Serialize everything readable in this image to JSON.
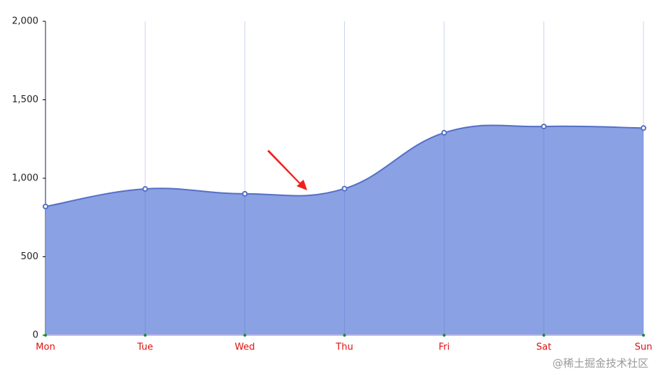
{
  "chart_data": {
    "type": "area",
    "categories": [
      "Mon",
      "Tue",
      "Wed",
      "Thu",
      "Fri",
      "Sat",
      "Sun"
    ],
    "values": [
      820,
      932,
      901,
      934,
      1290,
      1330,
      1320
    ],
    "color": "#5470c6",
    "area_color": "#8aa1e3",
    "x_label_color": "#e01010",
    "ylim": [
      0,
      2000
    ],
    "yticks": [
      0,
      500,
      {
        "value": 1000,
        "label": "1,000"
      },
      {
        "value": 1500,
        "label": "1,500"
      },
      {
        "value": 2000,
        "label": "2,000"
      }
    ],
    "grid": true,
    "smooth": true,
    "watermark": "@稀土掘金技术社区"
  }
}
